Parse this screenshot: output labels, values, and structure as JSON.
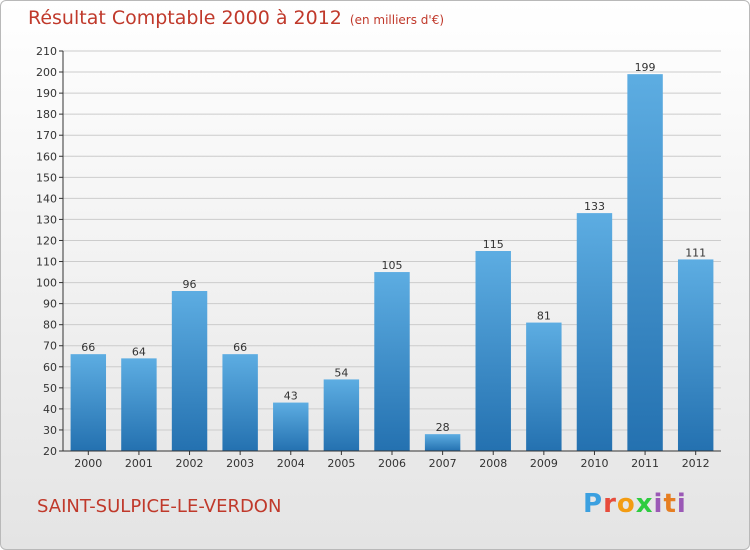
{
  "header": {
    "title": "Résultat Comptable 2000 à 2012",
    "unit": "(en milliers d'€)"
  },
  "footer": {
    "commune": "SAINT-SULPICE-LE-VERDON",
    "logo": [
      "P",
      "r",
      "o",
      "x",
      "i",
      "t",
      "i"
    ]
  },
  "colors": {
    "title": "#c0392b",
    "bar_light": "#5dade2",
    "bar_dark": "#2471b0",
    "axis": "#333333",
    "grid": "#cccccc"
  },
  "chart_data": {
    "type": "bar",
    "title": "Résultat Comptable 2000 à 2012",
    "subtitle": "(en milliers d'€)",
    "xlabel": "",
    "ylabel": "",
    "categories": [
      "2000",
      "2001",
      "2002",
      "2003",
      "2004",
      "2005",
      "2006",
      "2007",
      "2008",
      "2009",
      "2010",
      "2011",
      "2012"
    ],
    "values": [
      66,
      64,
      96,
      66,
      43,
      54,
      105,
      28,
      115,
      81,
      133,
      199,
      111
    ],
    "ylim": [
      20,
      210
    ],
    "yticks": [
      20,
      30,
      40,
      50,
      60,
      70,
      80,
      90,
      100,
      110,
      120,
      130,
      140,
      150,
      160,
      170,
      180,
      190,
      200,
      210
    ],
    "grid": true,
    "data_labels": true
  }
}
